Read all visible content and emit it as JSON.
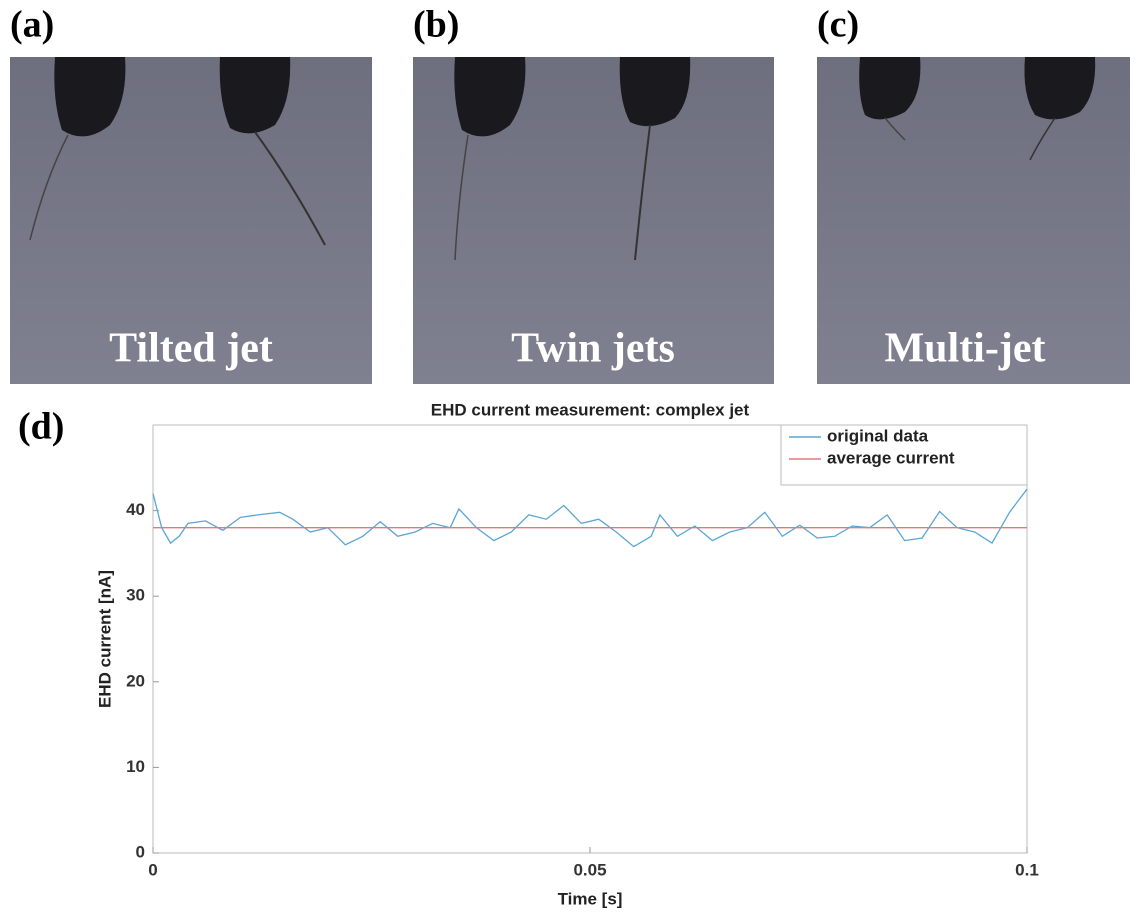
{
  "panels": [
    {
      "label": "(a)",
      "caption": "Tilted jet"
    },
    {
      "label": "(b)",
      "caption": "Twin jets"
    },
    {
      "label": "(c)",
      "caption": "Multi-jet"
    }
  ],
  "chart_label": "(d)",
  "chart_data": {
    "type": "line",
    "title": "EHD current measurement: complex jet",
    "x_label": "Time [s]",
    "y_label": "EHD current [nA]",
    "xlim": [
      0,
      0.1
    ],
    "ylim": [
      0,
      50
    ],
    "xticks": [
      0,
      0.05,
      0.1
    ],
    "yticks": [
      0,
      10,
      20,
      30,
      40
    ],
    "legend": "upper right",
    "series": [
      {
        "name": "original data",
        "color": "#5aa6d6",
        "x": [
          0,
          0.001,
          0.002,
          0.003,
          0.004,
          0.006,
          0.008,
          0.01,
          0.012,
          0.0145,
          0.016,
          0.018,
          0.02,
          0.022,
          0.024,
          0.026,
          0.028,
          0.03,
          0.032,
          0.034,
          0.035,
          0.037,
          0.039,
          0.041,
          0.043,
          0.045,
          0.047,
          0.049,
          0.051,
          0.053,
          0.055,
          0.057,
          0.058,
          0.06,
          0.062,
          0.064,
          0.066,
          0.068,
          0.07,
          0.072,
          0.074,
          0.076,
          0.078,
          0.08,
          0.082,
          0.084,
          0.086,
          0.088,
          0.09,
          0.092,
          0.094,
          0.096,
          0.098,
          0.1
        ],
        "values": [
          42,
          38,
          36.2,
          37,
          38.5,
          38.8,
          37.7,
          39.2,
          39.5,
          39.8,
          39,
          37.5,
          38,
          36,
          37,
          38.7,
          37,
          37.5,
          38.5,
          38,
          40.2,
          38,
          36.5,
          37.5,
          39.5,
          39,
          40.6,
          38.5,
          39,
          37.5,
          35.8,
          37,
          39.5,
          37,
          38.2,
          36.5,
          37.5,
          38,
          39.8,
          37,
          38.3,
          36.8,
          37,
          38.2,
          38,
          39.5,
          36.5,
          36.8,
          39.9,
          38,
          37.5,
          36.2,
          39.8,
          42.5
        ]
      },
      {
        "name": "average current",
        "color": "#e07a7a",
        "x": [
          0,
          0.1
        ],
        "values": [
          38,
          38
        ]
      }
    ]
  }
}
